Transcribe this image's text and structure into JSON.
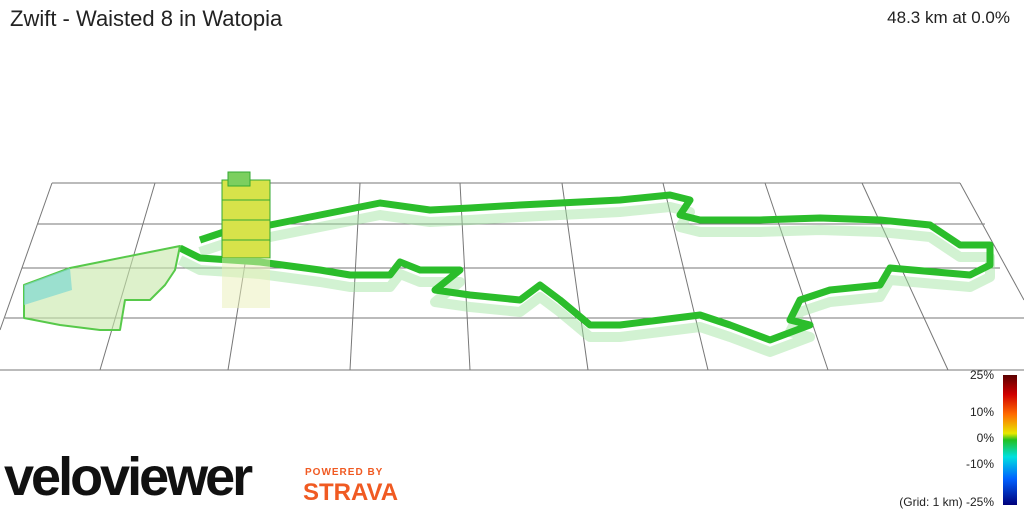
{
  "header": {
    "title": "Zwift - Waisted 8 in Watopia",
    "summary": "48.3 km at 0.0%"
  },
  "legend": {
    "ticks": [
      "25%",
      "10%",
      "0%",
      "-10%",
      "-25%"
    ],
    "grid_note": "(Grid: 1 km)"
  },
  "branding": {
    "logo": "veloviewer",
    "powered_by": "POWERED BY",
    "partner": "STRAVA"
  }
}
